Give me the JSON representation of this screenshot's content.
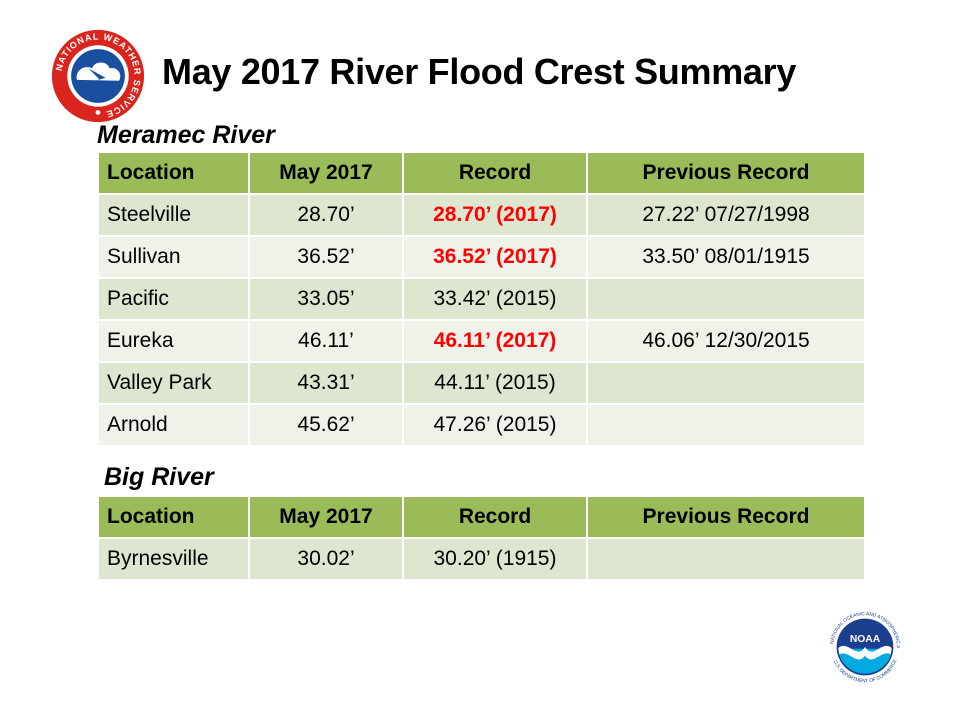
{
  "header": {
    "title": "May 2017 River Flood Crest Summary",
    "nws_logo": {
      "icon": "nws-logo-icon",
      "ring_text": "NATIONAL WEATHER SERVICE",
      "colors": {
        "ring": "#d9251d",
        "center": "#1a4fa0",
        "background": "#ffffff"
      }
    },
    "noaa_logo": {
      "icon": "noaa-logo-icon",
      "text": "NOAA",
      "ring_text": "NATIONAL OCEANIC AND ATMOSPHERIC ADMINISTRATION",
      "bottom_text": "U.S. DEPARTMENT OF COMMERCE",
      "colors": {
        "dark": "#1b3f8c",
        "light": "#00a9e0"
      }
    }
  },
  "colors": {
    "header_bg": "#9bbb59",
    "row_odd": "#dde6cf",
    "row_even": "#eef2e8",
    "new_record": "#ff0000"
  },
  "meramec": {
    "label": "Meramec River",
    "columns": [
      "Location",
      "May 2017",
      "Record",
      "Previous Record"
    ],
    "rows": [
      {
        "location": "Steelville",
        "may2017": "28.70’",
        "record": "28.70’ (2017)",
        "record_is_new": true,
        "previous": "27.22’  07/27/1998"
      },
      {
        "location": "Sullivan",
        "may2017": "36.52’",
        "record": "36.52’ (2017)",
        "record_is_new": true,
        "previous": "33.50’  08/01/1915"
      },
      {
        "location": "Pacific",
        "may2017": "33.05’",
        "record": "33.42’ (2015)",
        "record_is_new": false,
        "previous": ""
      },
      {
        "location": "Eureka",
        "may2017": "46.11’",
        "record": "46.11’ (2017)",
        "record_is_new": true,
        "previous": "46.06’  12/30/2015"
      },
      {
        "location": "Valley Park",
        "may2017": "43.31’",
        "record": "44.11’ (2015)",
        "record_is_new": false,
        "previous": ""
      },
      {
        "location": "Arnold",
        "may2017": "45.62’",
        "record": "47.26’ (2015)",
        "record_is_new": false,
        "previous": ""
      }
    ]
  },
  "big": {
    "label": "Big River",
    "columns": [
      "Location",
      "May 2017",
      "Record",
      "Previous Record"
    ],
    "rows": [
      {
        "location": "Byrnesville",
        "may2017": "30.02’",
        "record": "30.20’ (1915)",
        "record_is_new": false,
        "previous": ""
      }
    ]
  }
}
